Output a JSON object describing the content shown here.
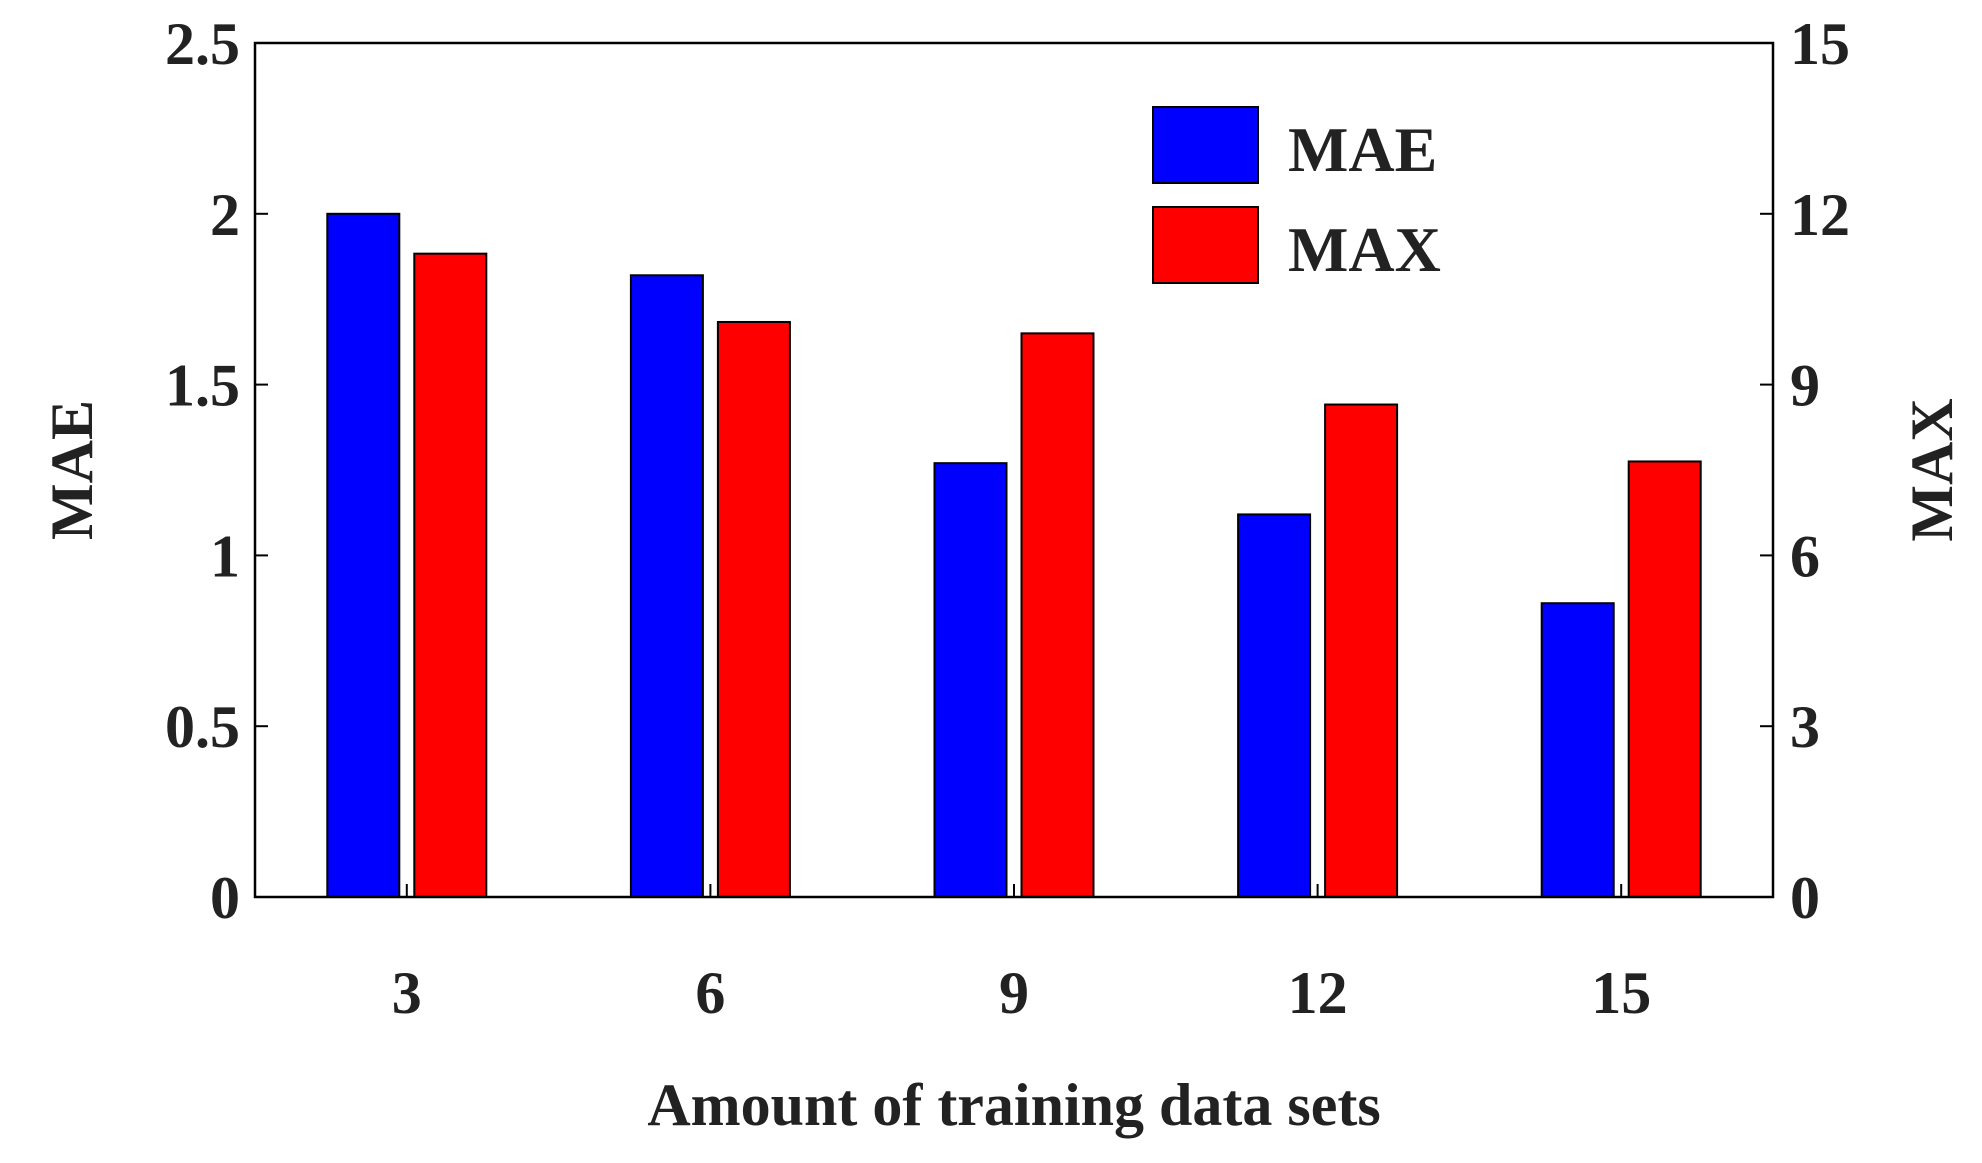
{
  "chart_data": {
    "type": "bar",
    "categories": [
      "3",
      "6",
      "9",
      "12",
      "15"
    ],
    "series": [
      {
        "name": "MAE",
        "axis": "left",
        "color": "#0000ff",
        "values": [
          2.0,
          1.82,
          1.27,
          1.12,
          0.86
        ]
      },
      {
        "name": "MAX",
        "axis": "right",
        "color": "#ff0000",
        "values": [
          11.3,
          10.1,
          9.9,
          8.65,
          7.65
        ]
      }
    ],
    "xlabel": "Amount of training data sets",
    "ylabel_left": "MAE",
    "ylabel_right": "MAX",
    "ylim_left": [
      0,
      2.5
    ],
    "ylim_right": [
      0,
      15
    ],
    "yticks_left": [
      "0",
      "0.5",
      "1",
      "1.5",
      "2",
      "2.5"
    ],
    "yticks_right": [
      "0",
      "3",
      "6",
      "9",
      "12",
      "15"
    ],
    "legend": {
      "position": "top-right",
      "entries": [
        "MAE",
        "MAX"
      ]
    },
    "grid": false
  }
}
